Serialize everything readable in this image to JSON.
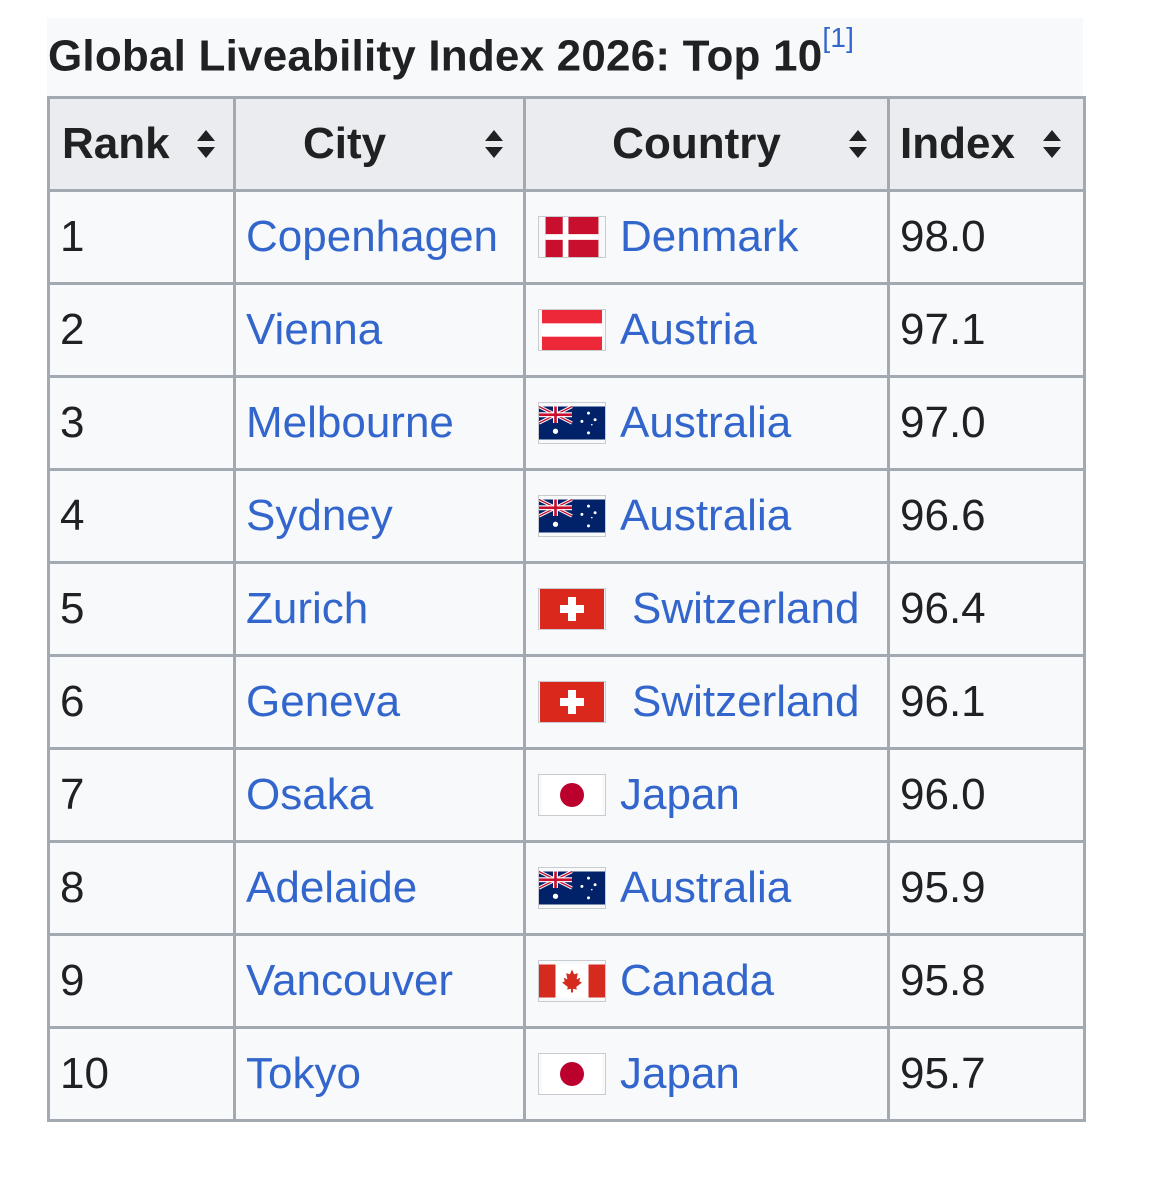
{
  "caption": {
    "title": "Global Liveability Index 2026: Top 10",
    "ref": "[1]"
  },
  "headers": {
    "rank": "Rank",
    "city": "City",
    "country": "Country",
    "index": "Index"
  },
  "rows": [
    {
      "rank": "1",
      "city": "Copenhagen",
      "country": "Denmark",
      "flag": "denmark-flag-icon",
      "index": "98.0"
    },
    {
      "rank": "2",
      "city": "Vienna",
      "country": "Austria",
      "flag": "austria-flag-icon",
      "index": "97.1"
    },
    {
      "rank": "3",
      "city": "Melbourne",
      "country": "Australia",
      "flag": "australia-flag-icon",
      "index": "97.0"
    },
    {
      "rank": "4",
      "city": "Sydney",
      "country": "Australia",
      "flag": "australia-flag-icon",
      "index": "96.6"
    },
    {
      "rank": "5",
      "city": "Zurich",
      "country": "Switzerland",
      "flag": "switzerland-flag-icon",
      "index": "96.4"
    },
    {
      "rank": "6",
      "city": "Geneva",
      "country": "Switzerland",
      "flag": "switzerland-flag-icon",
      "index": "96.1"
    },
    {
      "rank": "7",
      "city": "Osaka",
      "country": "Japan",
      "flag": "japan-flag-icon",
      "index": "96.0"
    },
    {
      "rank": "8",
      "city": "Adelaide",
      "country": "Australia",
      "flag": "australia-flag-icon",
      "index": "95.9"
    },
    {
      "rank": "9",
      "city": "Vancouver",
      "country": "Canada",
      "flag": "canada-flag-icon",
      "index": "95.8"
    },
    {
      "rank": "10",
      "city": "Tokyo",
      "country": "Japan",
      "flag": "japan-flag-icon",
      "index": "95.7"
    }
  ],
  "colors": {
    "link": "#3366cc",
    "header_bg": "#eaecf0",
    "cell_bg": "#f8f9fa",
    "border": "#a2a9b1"
  }
}
